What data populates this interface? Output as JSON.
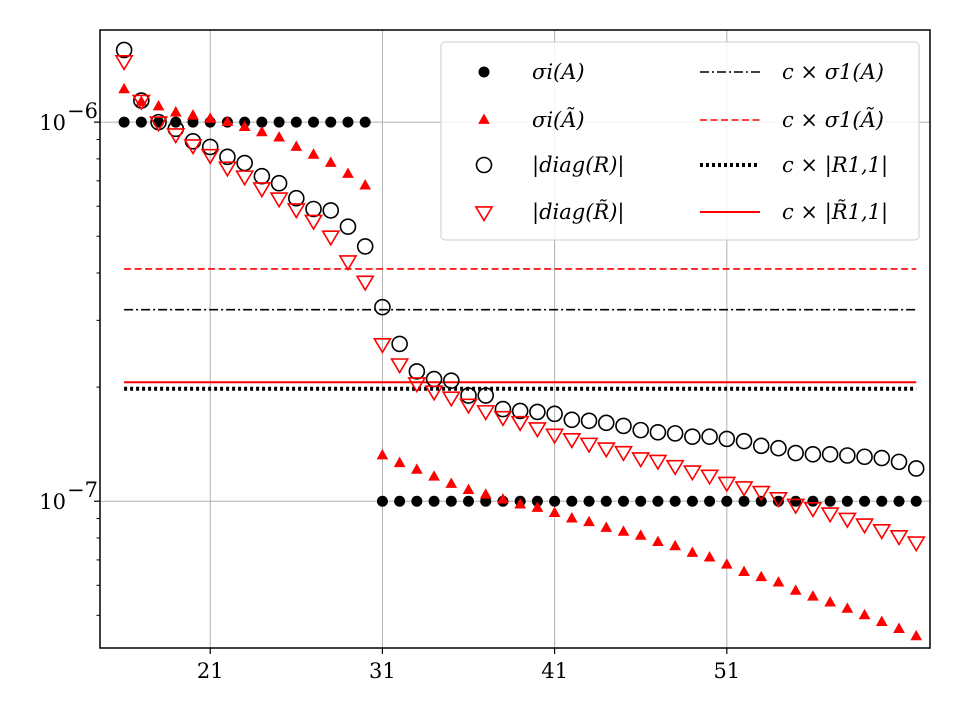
{
  "chart_data": {
    "type": "scatter",
    "title": "",
    "xlabel": "",
    "ylabel": "",
    "y_scale": "log",
    "xlim": [
      14.6,
      62.8
    ],
    "ylim": [
      4.1e-08,
      1.75e-06
    ],
    "x_ticks": [
      {
        "value": 21,
        "label": "21"
      },
      {
        "value": 31,
        "label": "31"
      },
      {
        "value": 41,
        "label": "41"
      },
      {
        "value": 51,
        "label": "51"
      }
    ],
    "y_ticks": [
      {
        "value": 1e-07,
        "label": "10",
        "exp": "−7"
      },
      {
        "value": 1e-06,
        "label": "10",
        "exp": "−6"
      }
    ],
    "grid": true,
    "legend_position": "top-right",
    "colors": {
      "black": "#000000",
      "red": "#ff0000",
      "grid": "#b0b0b0"
    },
    "series": [
      {
        "name": "σi(A)",
        "marker": "filled-circle",
        "color": "#000000",
        "x": [
          16,
          17,
          18,
          19,
          20,
          21,
          22,
          23,
          24,
          25,
          26,
          27,
          28,
          29,
          30,
          31,
          32,
          33,
          34,
          35,
          36,
          37,
          38,
          39,
          40,
          41,
          42,
          43,
          44,
          45,
          46,
          47,
          48,
          49,
          50,
          51,
          52,
          53,
          54,
          55,
          56,
          57,
          58,
          59,
          60,
          61,
          62
        ],
        "y": [
          1e-06,
          1e-06,
          1e-06,
          1e-06,
          1e-06,
          1e-06,
          1e-06,
          1e-06,
          1e-06,
          1e-06,
          1e-06,
          1e-06,
          1e-06,
          1e-06,
          1e-06,
          1e-07,
          1e-07,
          1e-07,
          1e-07,
          1e-07,
          1e-07,
          1e-07,
          1e-07,
          1e-07,
          1e-07,
          1e-07,
          1e-07,
          1e-07,
          1e-07,
          1e-07,
          1e-07,
          1e-07,
          1e-07,
          1e-07,
          1e-07,
          1e-07,
          1e-07,
          1e-07,
          1e-07,
          1e-07,
          1e-07,
          1e-07,
          1e-07,
          1e-07,
          1e-07,
          1e-07,
          1e-07
        ]
      },
      {
        "name": "σi(Ã)",
        "marker": "filled-triangle-up",
        "color": "#ff0000",
        "x": [
          16,
          17,
          18,
          19,
          20,
          21,
          22,
          23,
          24,
          25,
          26,
          27,
          28,
          29,
          30,
          31,
          32,
          33,
          34,
          35,
          36,
          37,
          38,
          39,
          40,
          41,
          42,
          43,
          44,
          45,
          46,
          47,
          48,
          49,
          50,
          51,
          52,
          53,
          54,
          55,
          56,
          57,
          58,
          59,
          60,
          61,
          62
        ],
        "y": [
          1.22e-06,
          1.13e-06,
          1.1e-06,
          1.06e-06,
          1.04e-06,
          1.02e-06,
          1e-06,
          9.7e-07,
          9.4e-07,
          9.1e-07,
          8.6e-07,
          8.2e-07,
          7.8e-07,
          7.3e-07,
          6.8e-07,
          1.32e-07,
          1.26e-07,
          1.21e-07,
          1.16e-07,
          1.11e-07,
          1.07e-07,
          1.04e-07,
          1.01e-07,
          9.8e-08,
          9.6e-08,
          9.3e-08,
          9e-08,
          8.8e-08,
          8.5e-08,
          8.3e-08,
          8.1e-08,
          7.8e-08,
          7.6e-08,
          7.3e-08,
          7.1e-08,
          6.8e-08,
          6.5e-08,
          6.3e-08,
          6.1e-08,
          5.8e-08,
          5.6e-08,
          5.4e-08,
          5.2e-08,
          5e-08,
          4.8e-08,
          4.6e-08,
          4.4e-08
        ]
      },
      {
        "name": "|diag(R)|",
        "marker": "open-circle",
        "color": "#000000",
        "x": [
          16,
          17,
          18,
          19,
          20,
          21,
          22,
          23,
          24,
          25,
          26,
          27,
          28,
          29,
          30,
          31,
          32,
          33,
          34,
          35,
          36,
          37,
          38,
          39,
          40,
          41,
          42,
          43,
          44,
          45,
          46,
          47,
          48,
          49,
          50,
          51,
          52,
          53,
          54,
          55,
          56,
          57,
          58,
          59,
          60,
          61,
          62
        ],
        "y": [
          1.55e-06,
          1.14e-06,
          1e-06,
          9.6e-07,
          8.9e-07,
          8.6e-07,
          8.1e-07,
          7.8e-07,
          7.2e-07,
          6.9e-07,
          6.3e-07,
          5.9e-07,
          5.85e-07,
          5.3e-07,
          4.7e-07,
          3.25e-07,
          2.6e-07,
          2.2e-07,
          2.1e-07,
          2.08e-07,
          1.9e-07,
          1.9e-07,
          1.75e-07,
          1.73e-07,
          1.72e-07,
          1.7e-07,
          1.64e-07,
          1.63e-07,
          1.61e-07,
          1.58e-07,
          1.54e-07,
          1.52e-07,
          1.51e-07,
          1.48e-07,
          1.48e-07,
          1.46e-07,
          1.44e-07,
          1.4e-07,
          1.38e-07,
          1.34e-07,
          1.33e-07,
          1.33e-07,
          1.32e-07,
          1.31e-07,
          1.3e-07,
          1.27e-07,
          1.22e-07
        ]
      },
      {
        "name": "|diag(R̃)|",
        "marker": "open-triangle-down",
        "color": "#ff0000",
        "x": [
          16,
          17,
          18,
          19,
          20,
          21,
          22,
          23,
          24,
          25,
          26,
          27,
          28,
          29,
          30,
          31,
          32,
          33,
          34,
          35,
          36,
          37,
          38,
          39,
          40,
          41,
          42,
          43,
          44,
          45,
          46,
          47,
          48,
          49,
          50,
          51,
          52,
          53,
          54,
          55,
          56,
          57,
          58,
          59,
          60,
          61,
          62
        ],
        "y": [
          1.45e-06,
          1.14e-06,
          1e-06,
          9.3e-07,
          8.7e-07,
          8.2e-07,
          7.6e-07,
          7.2e-07,
          6.7e-07,
          6.3e-07,
          5.9e-07,
          5.5e-07,
          5e-07,
          4.3e-07,
          3.8e-07,
          2.6e-07,
          2.3e-07,
          2.05e-07,
          1.95e-07,
          1.88e-07,
          1.8e-07,
          1.73e-07,
          1.67e-07,
          1.62e-07,
          1.56e-07,
          1.5e-07,
          1.46e-07,
          1.42e-07,
          1.38e-07,
          1.35e-07,
          1.3e-07,
          1.28e-07,
          1.24e-07,
          1.2e-07,
          1.17e-07,
          1.12e-07,
          1.09e-07,
          1.06e-07,
          1.02e-07,
          9.8e-08,
          9.6e-08,
          9.3e-08,
          9e-08,
          8.7e-08,
          8.4e-08,
          8.1e-08,
          7.8e-08
        ]
      }
    ],
    "hlines": [
      {
        "name": "c × σ1(A)",
        "y": 3.2e-07,
        "color": "#000000",
        "style": "dashdot",
        "xmin": 16,
        "xmax": 62
      },
      {
        "name": "c × σ1(Ã)",
        "y": 4.1e-07,
        "color": "#ff0000",
        "style": "dashed",
        "xmin": 16,
        "xmax": 62
      },
      {
        "name": "c × |R1,1|",
        "y": 1.98e-07,
        "color": "#000000",
        "style": "dotted",
        "xmin": 16,
        "xmax": 62
      },
      {
        "name": "c × |R̃1,1|",
        "y": 2.06e-07,
        "color": "#ff0000",
        "style": "solid",
        "xmin": 16,
        "xmax": 62
      }
    ]
  }
}
